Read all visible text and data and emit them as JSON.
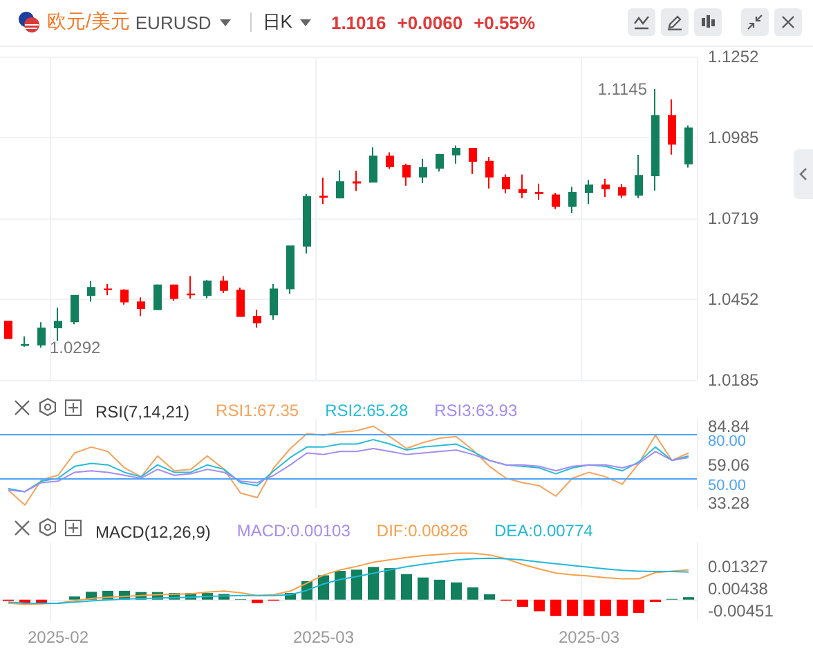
{
  "chart_data": [
    {
      "type": "candlestick",
      "title": "欧元/美元",
      "subtitle": "EURUSD",
      "annotations": [
        "日K",
        "1.1016",
        "+0.0060",
        "+0.55%",
        "1.1145",
        "1.0292"
      ],
      "categories": [
        null,
        null,
        null,
        "2025-02",
        null,
        null,
        null,
        null,
        null,
        null,
        null,
        null,
        null,
        null,
        null,
        null,
        null,
        null,
        null,
        "2025-03",
        null,
        null,
        null,
        null,
        null,
        null,
        null,
        null,
        null,
        null,
        null,
        null,
        null,
        null,
        null,
        "2025-03",
        null,
        null,
        null,
        null,
        null,
        null
      ],
      "ohlc": [
        [
          1.0379,
          1.0379,
          1.0323,
          1.0323
        ],
        [
          1.03,
          1.0329,
          1.0295,
          1.0301
        ],
        [
          1.0302,
          1.0376,
          1.0292,
          1.0356
        ],
        [
          1.0358,
          1.0424,
          1.0315,
          1.0378
        ],
        [
          1.0378,
          1.0466,
          1.0369,
          1.0464
        ],
        [
          1.0465,
          1.0512,
          1.0444,
          1.049
        ],
        [
          1.0485,
          1.0502,
          1.0465,
          1.0484
        ],
        [
          1.0481,
          1.0485,
          1.0434,
          1.0444
        ],
        [
          1.0442,
          1.0458,
          1.0396,
          1.0422
        ],
        [
          1.0418,
          1.0501,
          1.0418,
          1.0498
        ],
        [
          1.0498,
          1.0501,
          1.0447,
          1.0455
        ],
        [
          1.0468,
          1.0528,
          1.0454,
          1.0467
        ],
        [
          1.0465,
          1.0515,
          1.0455,
          1.0511
        ],
        [
          1.0511,
          1.0528,
          1.0472,
          1.0482
        ],
        [
          1.0481,
          1.049,
          1.0394,
          1.0396
        ],
        [
          1.0395,
          1.0417,
          1.0358,
          1.0375
        ],
        [
          1.0401,
          1.0502,
          1.0384,
          1.0485
        ],
        [
          1.0487,
          1.0628,
          1.047,
          1.0627
        ],
        [
          1.0628,
          1.0799,
          1.0603,
          1.079
        ],
        [
          1.0791,
          1.0853,
          1.0766,
          1.0789
        ],
        [
          1.0787,
          1.0877,
          1.0784,
          1.0839
        ],
        [
          1.0838,
          1.0876,
          1.0809,
          1.0836
        ],
        [
          1.0839,
          1.0953,
          1.0838,
          1.0923
        ],
        [
          1.0923,
          1.0936,
          1.0882,
          1.089
        ],
        [
          1.0892,
          1.0899,
          1.0826,
          1.0856
        ],
        [
          1.0856,
          1.0915,
          1.0835,
          1.0885
        ],
        [
          1.0885,
          1.0931,
          1.0873,
          1.0928
        ],
        [
          1.0929,
          1.0959,
          1.0899,
          1.0949
        ],
        [
          1.0949,
          1.0949,
          1.0865,
          1.0908
        ],
        [
          1.0906,
          1.0921,
          1.0817,
          1.0856
        ],
        [
          1.0853,
          1.0863,
          1.0802,
          1.0817
        ],
        [
          1.0813,
          1.0863,
          1.0785,
          1.0805
        ],
        [
          1.0803,
          1.0833,
          1.078,
          1.0801
        ],
        [
          1.0795,
          1.0803,
          1.0749,
          1.0759
        ],
        [
          1.0759,
          1.0823,
          1.0737,
          1.0803
        ],
        [
          1.0805,
          1.0845,
          1.0766,
          1.0828
        ],
        [
          1.0828,
          1.0849,
          1.0789,
          1.0817
        ],
        [
          1.0819,
          1.0832,
          1.0785,
          1.0796
        ],
        [
          1.0796,
          1.0928,
          1.0785,
          1.0859
        ],
        [
          1.086,
          1.1145,
          1.081,
          1.1057
        ],
        [
          1.1057,
          1.1111,
          1.0929,
          1.0964
        ],
        [
          1.0899,
          1.1025,
          1.0886,
          1.1016
        ]
      ],
      "colors": [
        "#ff0000",
        "#12805c",
        "#12805c",
        "#12805c",
        "#12805c",
        "#12805c",
        "#ff0000",
        "#ff0000",
        "#ff0000",
        "#12805c",
        "#ff0000",
        "#ff0000",
        "#12805c",
        "#ff0000",
        "#ff0000",
        "#ff0000",
        "#12805c",
        "#12805c",
        "#12805c",
        "#ff0000",
        "#12805c",
        "#ff0000",
        "#12805c",
        "#ff0000",
        "#ff0000",
        "#12805c",
        "#12805c",
        "#12805c",
        "#ff0000",
        "#ff0000",
        "#ff0000",
        "#ff0000",
        "#ff0000",
        "#ff0000",
        "#12805c",
        "#12805c",
        "#ff0000",
        "#ff0000",
        "#12805c",
        "#12805c",
        "#ff0000",
        "#12805c"
      ],
      "ylim": [
        1.0185,
        1.1252
      ],
      "yticks": [
        1.0185,
        1.0452,
        1.0719,
        1.0985,
        1.1252
      ],
      "grid": true,
      "tick_labels": "y"
    },
    {
      "type": "line",
      "title": "RSI(7,14,21)",
      "categories": [
        null,
        null,
        null,
        "2025-02",
        null,
        null,
        null,
        null,
        null,
        null,
        null,
        null,
        null,
        null,
        null,
        null,
        null,
        null,
        null,
        "2025-03",
        null,
        null,
        null,
        null,
        null,
        null,
        null,
        null,
        null,
        null,
        null,
        null,
        null,
        null,
        null,
        "2025-03",
        null,
        null,
        null,
        null,
        null,
        null
      ],
      "series": [
        {
          "name": "RSI1:67.35",
          "color": "#f7a35c",
          "values": [
            42,
            32,
            49,
            52,
            67,
            71,
            68,
            57,
            51,
            65,
            55,
            56,
            65,
            56,
            40,
            37,
            57,
            70,
            80,
            79,
            81,
            82,
            85,
            78,
            70,
            74,
            77,
            78,
            69,
            58,
            50,
            47,
            45,
            38,
            50,
            54,
            51,
            46,
            60,
            79,
            62,
            67
          ]
        },
        {
          "name": "RSI2:65.28",
          "color": "#26bcd7",
          "values": [
            43,
            41,
            48,
            50,
            58,
            60,
            59,
            54,
            51,
            59,
            54,
            54,
            59,
            56,
            47,
            45,
            55,
            64,
            71,
            71,
            73,
            73,
            76,
            73,
            69,
            71,
            72,
            73,
            68,
            62,
            59,
            58,
            57,
            53,
            57,
            59,
            58,
            55,
            61,
            71,
            62,
            65
          ]
        },
        {
          "name": "RSI3:63.93",
          "color": "#a58cf0",
          "values": [
            42,
            41,
            47,
            48,
            54,
            55,
            54,
            52,
            50,
            56,
            52,
            53,
            56,
            54,
            48,
            47,
            52,
            59,
            67,
            66,
            68,
            68,
            70,
            68,
            66,
            67,
            68,
            69,
            66,
            62,
            59,
            59,
            58,
            55,
            58,
            59,
            59,
            57,
            60,
            68,
            62,
            64
          ]
        }
      ],
      "ref_lines": [
        {
          "axis": "y",
          "value": 80,
          "label": "80.00",
          "color": "#4fa3f7"
        },
        {
          "axis": "y",
          "value": 50,
          "label": "50.00",
          "color": "#4fa3f7"
        }
      ],
      "ylim": [
        30,
        90
      ],
      "yticks": [
        33.28,
        59.06,
        84.84
      ],
      "grid": "x",
      "legend": "top",
      "tick_labels": "y"
    },
    {
      "type": "bar",
      "title": "MACD(12,26,9)",
      "categories": [
        null,
        null,
        null,
        "2025-02",
        null,
        null,
        null,
        null,
        null,
        null,
        null,
        null,
        null,
        null,
        null,
        null,
        null,
        null,
        null,
        "2025-03",
        null,
        null,
        null,
        null,
        null,
        null,
        null,
        null,
        null,
        null,
        null,
        null,
        null,
        null,
        null,
        "2025-03",
        null,
        null,
        null,
        null,
        null,
        null
      ],
      "series": [
        {
          "name": "MACD:0.00103",
          "color": "#a58cf0",
          "values": [
            -0.0005,
            -0.0018,
            -0.0016,
            null,
            0.0013,
            0.0032,
            0.0036,
            0.0036,
            0.0031,
            0.0031,
            0.0027,
            0.0027,
            0.0027,
            0.0023,
            0.0002,
            -0.0014,
            -0.0004,
            0.0027,
            0.0075,
            0.0099,
            0.0117,
            0.0122,
            0.0133,
            0.0128,
            0.0104,
            0.009,
            0.0081,
            0.007,
            0.005,
            0.0022,
            -0.0004,
            -0.0029,
            -0.0047,
            -0.0066,
            -0.0066,
            -0.0066,
            -0.0066,
            -0.0066,
            -0.0054,
            -0.0009,
            0.0003,
            0.001
          ],
          "colors": [
            "#ff0000",
            "#ff0000",
            "#ff0000",
            "#12805c",
            "#12805c",
            "#12805c",
            "#12805c",
            "#12805c",
            "#12805c",
            "#12805c",
            "#12805c",
            "#12805c",
            "#12805c",
            "#12805c",
            "#12805c",
            "#ff0000",
            "#ff0000",
            "#12805c",
            "#12805c",
            "#12805c",
            "#12805c",
            "#12805c",
            "#12805c",
            "#12805c",
            "#12805c",
            "#12805c",
            "#12805c",
            "#12805c",
            "#12805c",
            "#12805c",
            "#ff0000",
            "#ff0000",
            "#ff0000",
            "#ff0000",
            "#ff0000",
            "#ff0000",
            "#ff0000",
            "#ff0000",
            "#ff0000",
            "#ff0000",
            "#12805c",
            "#12805c"
          ]
        },
        {
          "name": "DIF:0.00826",
          "type": "line",
          "color": "#f7a04b",
          "values": [
            -0.0014,
            -0.0019,
            -0.0017,
            -0.0014,
            -0.0004,
            0.0005,
            0.001,
            0.0013,
            0.0017,
            0.002,
            0.0022,
            0.0024,
            0.0031,
            0.0035,
            0.0028,
            0.0017,
            0.002,
            0.0035,
            0.0067,
            0.01,
            0.0121,
            0.0135,
            0.0152,
            0.0162,
            0.0171,
            0.0179,
            0.0184,
            0.0189,
            0.0189,
            0.0182,
            0.0166,
            0.0143,
            0.0125,
            0.0108,
            0.0101,
            0.0096,
            0.0089,
            0.0085,
            0.0085,
            0.011,
            0.0116,
            0.0121
          ]
        },
        {
          "name": "DEA:0.00774",
          "type": "line",
          "color": "#22b8d8",
          "values": [
            -0.001,
            -0.0014,
            -0.0015,
            -0.0015,
            -0.001,
            -0.0005,
            -0.0001,
            0.0003,
            0.0004,
            0.0006,
            0.0008,
            0.001,
            0.0013,
            0.0015,
            0.0017,
            0.0017,
            0.0017,
            0.002,
            0.0038,
            0.0064,
            0.0082,
            0.0094,
            0.0107,
            0.0121,
            0.0134,
            0.0144,
            0.0153,
            0.0161,
            0.0166,
            0.0168,
            0.0166,
            0.0161,
            0.0153,
            0.0146,
            0.0139,
            0.0132,
            0.0125,
            0.0119,
            0.0116,
            0.0114,
            0.0114,
            0.0112
          ]
        }
      ],
      "ylim": [
        -0.0085,
        0.0235
      ],
      "yticks": [
        -0.00451,
        0.00438,
        0.01327
      ],
      "grid": "x",
      "legend": "top",
      "marker": "none"
    }
  ]
}
